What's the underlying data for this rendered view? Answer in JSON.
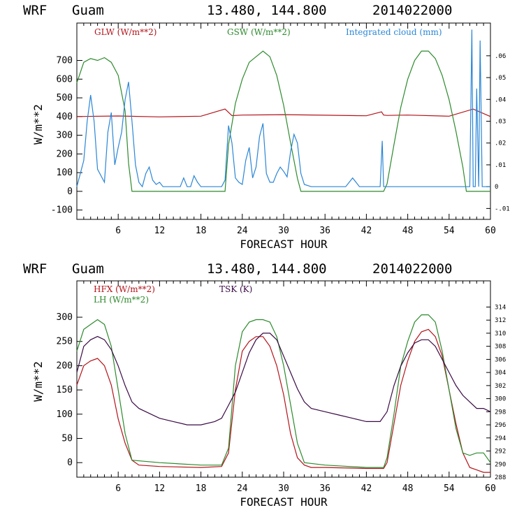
{
  "header": {
    "model": "WRF",
    "site": "Guam",
    "coords": "13.480, 144.800",
    "init": "2014022000"
  },
  "colors": {
    "red": "#b3141a",
    "green": "#2d8a2d",
    "blue": "#2a86d6",
    "purple": "#3a0a45"
  },
  "chart_data": [
    {
      "type": "line",
      "title": "WRF Guam 13.480, 144.800 2014022000",
      "xlabel": "FORECAST HOUR",
      "ylabel": "W/m**2",
      "xlim": [
        0,
        60
      ],
      "ylim": [
        -150,
        900
      ],
      "xticks": [
        6,
        12,
        18,
        24,
        30,
        36,
        42,
        48,
        54,
        60
      ],
      "yticks": [
        -100,
        0,
        100,
        200,
        300,
        400,
        500,
        600,
        700
      ],
      "y2lim": [
        -0.015,
        0.075
      ],
      "y2ticks": [
        -0.01,
        0,
        0.01,
        0.02,
        0.03,
        0.04,
        0.05,
        0.06
      ],
      "y2ticklabels": [
        "-.01",
        "0",
        ".01",
        ".02",
        ".03",
        ".04",
        ".05",
        ".06"
      ],
      "series": [
        {
          "name": "GLW (W/m**2)",
          "axis": "left",
          "color": "red",
          "x": [
            0,
            6,
            12,
            18,
            21.5,
            22.5,
            24,
            30,
            36,
            42,
            44.2,
            44.5,
            45,
            48,
            54,
            57.5,
            60
          ],
          "y": [
            400,
            403,
            398,
            402,
            440,
            405,
            408,
            410,
            407,
            404,
            425,
            408,
            406,
            408,
            402,
            440,
            400
          ]
        },
        {
          "name": "GSW (W/m**2)",
          "axis": "left",
          "color": "green",
          "x": [
            0,
            1,
            2,
            3,
            4,
            5,
            6,
            7,
            7.5,
            8,
            21.5,
            22,
            23,
            24,
            25,
            26,
            27,
            28,
            29,
            30,
            31,
            32,
            32.5,
            44.5,
            45,
            46,
            47,
            48,
            49,
            50,
            51,
            52,
            53,
            54,
            55,
            56,
            56.5,
            60
          ],
          "y": [
            580,
            690,
            710,
            700,
            715,
            690,
            620,
            430,
            150,
            0,
            0,
            250,
            470,
            600,
            690,
            720,
            750,
            720,
            620,
            460,
            260,
            70,
            0,
            0,
            40,
            250,
            450,
            600,
            700,
            750,
            750,
            710,
            620,
            490,
            320,
            130,
            0,
            0
          ]
        },
        {
          "name": "Integrated cloud (mm)",
          "axis": "right",
          "color": "blue",
          "x": [
            0,
            1,
            1.5,
            2,
            2.5,
            3,
            4,
            4.5,
            5,
            5.5,
            6,
            6.5,
            7,
            7.5,
            8,
            8.5,
            9,
            9.5,
            10,
            10.5,
            11,
            11.5,
            12,
            12.5,
            13,
            13.5,
            14,
            15,
            15.5,
            16,
            16.5,
            17,
            17.5,
            18,
            19,
            20,
            21,
            21.5,
            22,
            22.5,
            23,
            23.5,
            24,
            24.5,
            25,
            25.5,
            26,
            26.5,
            27,
            27.5,
            28,
            28.5,
            29,
            29.5,
            30,
            30.5,
            31,
            31.5,
            32,
            32.5,
            33,
            34,
            36,
            38,
            39,
            40,
            40.5,
            41,
            42,
            44,
            44.3,
            44.5,
            44.7,
            45,
            57,
            57.3,
            57.5,
            57.8,
            58,
            58.3,
            58.5,
            58.8,
            59,
            60
          ],
          "y": [
            0,
            0.012,
            0.03,
            0.042,
            0.03,
            0.008,
            0.002,
            0.025,
            0.034,
            0.01,
            0.018,
            0.025,
            0.04,
            0.048,
            0.03,
            0.01,
            0.002,
            0.0,
            0.006,
            0.009,
            0.003,
            0.001,
            0.002,
            0.0,
            0.0,
            0.0,
            0.0,
            0.0,
            0.004,
            0.0,
            0.0,
            0.005,
            0.002,
            0.0,
            0.0,
            0.0,
            0.0,
            0.003,
            0.028,
            0.02,
            0.004,
            0.002,
            0.001,
            0.012,
            0.018,
            0.004,
            0.009,
            0.023,
            0.029,
            0.006,
            0.002,
            0.002,
            0.006,
            0.009,
            0.007,
            0.0045,
            0.016,
            0.024,
            0.02,
            0.006,
            0.001,
            0.0,
            0.0,
            0.0,
            0.0,
            0.004,
            0.002,
            0.0,
            0.0,
            0.0,
            0.021,
            0.0,
            0.0,
            0.0,
            0.0,
            0.072,
            0.0,
            0.0,
            0.045,
            0.0,
            0.067,
            0.0,
            0.0,
            0.0
          ]
        }
      ],
      "legend": "top"
    },
    {
      "type": "line",
      "title": "WRF Guam 13.480, 144.800 2014022000",
      "xlabel": "FORECAST HOUR",
      "ylabel": "W/m**2",
      "xlim": [
        0,
        60
      ],
      "ylim": [
        -30,
        375
      ],
      "xticks": [
        6,
        12,
        18,
        24,
        30,
        36,
        42,
        48,
        54,
        60
      ],
      "yticks": [
        0,
        50,
        100,
        150,
        200,
        250,
        300
      ],
      "y2lim": [
        288,
        318
      ],
      "y2ticks": [
        288,
        290,
        292,
        294,
        296,
        298,
        300,
        302,
        304,
        306,
        308,
        310,
        312,
        314
      ],
      "series": [
        {
          "name": "HFX (W/m**2)",
          "axis": "left",
          "color": "red",
          "x": [
            0,
            1,
            2,
            3,
            4,
            5,
            6,
            7,
            8,
            9,
            12,
            18,
            21,
            22,
            23,
            24,
            25,
            26,
            27,
            28,
            29,
            30,
            31,
            32,
            33,
            34,
            36,
            42,
            44.5,
            45,
            46,
            47,
            48,
            49,
            50,
            51,
            52,
            53,
            54,
            55,
            56,
            57,
            58,
            59,
            60
          ],
          "y": [
            160,
            200,
            210,
            215,
            200,
            160,
            90,
            40,
            5,
            -5,
            -8,
            -10,
            -8,
            20,
            150,
            230,
            250,
            260,
            260,
            240,
            200,
            140,
            60,
            10,
            -5,
            -10,
            -10,
            -12,
            -12,
            0,
            80,
            160,
            210,
            250,
            270,
            275,
            260,
            220,
            150,
            80,
            20,
            -10,
            -15,
            -20,
            -20
          ]
        },
        {
          "name": "LH  (W/m**2)",
          "axis": "left",
          "color": "green",
          "x": [
            0,
            1,
            2,
            3,
            4,
            5,
            6,
            7,
            8,
            12,
            18,
            21,
            22,
            23,
            24,
            25,
            26,
            27,
            28,
            29,
            30,
            31,
            32,
            33,
            36,
            42,
            44.5,
            45,
            46,
            47,
            48,
            49,
            50,
            51,
            52,
            53,
            54,
            55,
            56,
            57,
            58,
            59,
            60
          ],
          "y": [
            230,
            275,
            285,
            295,
            285,
            240,
            150,
            60,
            5,
            0,
            -5,
            -5,
            30,
            200,
            270,
            290,
            295,
            295,
            290,
            260,
            200,
            120,
            40,
            0,
            -5,
            -10,
            -10,
            10,
            100,
            200,
            250,
            290,
            305,
            305,
            290,
            230,
            150,
            70,
            20,
            15,
            20,
            20,
            0
          ]
        },
        {
          "name": "TSK (K)",
          "axis": "right",
          "color": "purple",
          "x": [
            0,
            1,
            2,
            3,
            4,
            5,
            6,
            7,
            8,
            9,
            10,
            12,
            14,
            16,
            18,
            20,
            21,
            22,
            23,
            24,
            25,
            26,
            27,
            28,
            29,
            30,
            31,
            32,
            33,
            34,
            36,
            38,
            40,
            42,
            44,
            45,
            46,
            47,
            48,
            49,
            50,
            51,
            52,
            53,
            54,
            55,
            56,
            57,
            58,
            59,
            60
          ],
          "y": [
            304,
            308,
            309,
            309.5,
            309,
            307.5,
            305,
            302,
            299.5,
            298.5,
            298,
            297,
            296.5,
            296,
            296,
            296.5,
            297,
            299,
            301,
            304,
            307,
            309,
            310,
            310,
            309,
            306.5,
            304,
            301.5,
            299.5,
            298.5,
            298,
            297.5,
            297,
            296.5,
            296.5,
            298,
            302,
            305,
            307,
            308.5,
            309,
            309,
            308,
            306,
            304,
            302,
            300.5,
            299.5,
            298.5,
            298.5,
            298
          ]
        }
      ],
      "legend": "top-left"
    }
  ]
}
